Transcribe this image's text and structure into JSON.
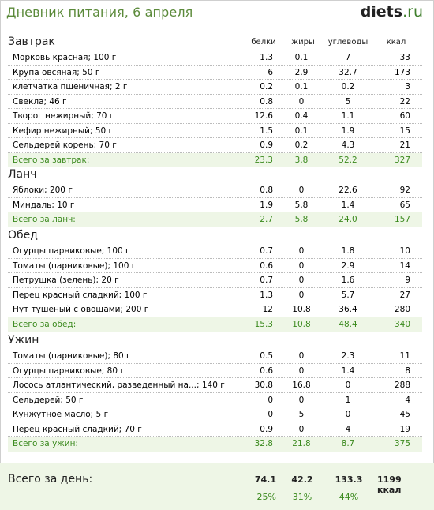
{
  "header": {
    "title": "Дневник питания, 6 апреля",
    "logo_bold": "diets",
    "logo_rest": ".ru"
  },
  "columns": {
    "protein": "белки",
    "fat": "жиры",
    "carbs": "углеводы",
    "kcal": "ккал"
  },
  "sections": {
    "breakfast": {
      "title": "Завтрак",
      "rows": [
        {
          "name": "Морковь красная; 100 г",
          "b": "1.3",
          "z": "0.1",
          "u": "7",
          "k": "33"
        },
        {
          "name": "Крупа овсяная; 50 г",
          "b": "6",
          "z": "2.9",
          "u": "32.7",
          "k": "173"
        },
        {
          "name": "клетчатка пшеничная; 2 г",
          "b": "0.2",
          "z": "0.1",
          "u": "0.2",
          "k": "3"
        },
        {
          "name": "Свекла; 46 г",
          "b": "0.8",
          "z": "0",
          "u": "5",
          "k": "22"
        },
        {
          "name": "Творог нежирный; 70 г",
          "b": "12.6",
          "z": "0.4",
          "u": "1.1",
          "k": "60"
        },
        {
          "name": "Кефир нежирный; 50 г",
          "b": "1.5",
          "z": "0.1",
          "u": "1.9",
          "k": "15"
        },
        {
          "name": "Сельдерей корень; 70 г",
          "b": "0.9",
          "z": "0.2",
          "u": "4.3",
          "k": "21"
        }
      ],
      "total": {
        "name": "Всего за завтрак:",
        "b": "23.3",
        "z": "3.8",
        "u": "52.2",
        "k": "327"
      }
    },
    "lunch": {
      "title": "Ланч",
      "rows": [
        {
          "name": "Яблоки; 200 г",
          "b": "0.8",
          "z": "0",
          "u": "22.6",
          "k": "92"
        },
        {
          "name": "Миндаль; 10 г",
          "b": "1.9",
          "z": "5.8",
          "u": "1.4",
          "k": "65"
        }
      ],
      "total": {
        "name": "Всего за ланч:",
        "b": "2.7",
        "z": "5.8",
        "u": "24.0",
        "k": "157"
      }
    },
    "dinner": {
      "title": "Обед",
      "rows": [
        {
          "name": "Огурцы парниковые; 100 г",
          "b": "0.7",
          "z": "0",
          "u": "1.8",
          "k": "10"
        },
        {
          "name": "Томаты (парниковые); 100 г",
          "b": "0.6",
          "z": "0",
          "u": "2.9",
          "k": "14"
        },
        {
          "name": "Петрушка (зелень); 20 г",
          "b": "0.7",
          "z": "0",
          "u": "1.6",
          "k": "9"
        },
        {
          "name": "Перец красный сладкий; 100 г",
          "b": "1.3",
          "z": "0",
          "u": "5.7",
          "k": "27"
        },
        {
          "name": "Нут тушеный с овощами; 200 г",
          "b": "12",
          "z": "10.8",
          "u": "36.4",
          "k": "280"
        }
      ],
      "total": {
        "name": "Всего за обед:",
        "b": "15.3",
        "z": "10.8",
        "u": "48.4",
        "k": "340"
      }
    },
    "supper": {
      "title": "Ужин",
      "rows": [
        {
          "name": "Томаты (парниковые); 80 г",
          "b": "0.5",
          "z": "0",
          "u": "2.3",
          "k": "11"
        },
        {
          "name": "Огурцы парниковые; 80 г",
          "b": "0.6",
          "z": "0",
          "u": "1.4",
          "k": "8"
        },
        {
          "name": "Лосось атлантический, разведенный на...; 140 г",
          "b": "30.8",
          "z": "16.8",
          "u": "0",
          "k": "288"
        },
        {
          "name": "Сельдерей; 50 г",
          "b": "0",
          "z": "0",
          "u": "1",
          "k": "4"
        },
        {
          "name": "Кунжутное масло; 5 г",
          "b": "0",
          "z": "5",
          "u": "0",
          "k": "45"
        },
        {
          "name": "Перец красный сладкий; 70 г",
          "b": "0.9",
          "z": "0",
          "u": "4",
          "k": "19"
        }
      ],
      "total": {
        "name": "Всего за ужин:",
        "b": "32.8",
        "z": "21.8",
        "u": "8.7",
        "k": "375"
      }
    }
  },
  "day_total": {
    "label": "Всего за день:",
    "b": "74.1",
    "z": "42.2",
    "u": "133.3",
    "k": "1199 ккал",
    "pb": "25%",
    "pz": "31%",
    "pu": "44%"
  },
  "colors": {
    "accent_green": "#3b8a1e",
    "title_green": "#5b8a3a",
    "total_bg": "#eef6e6"
  }
}
